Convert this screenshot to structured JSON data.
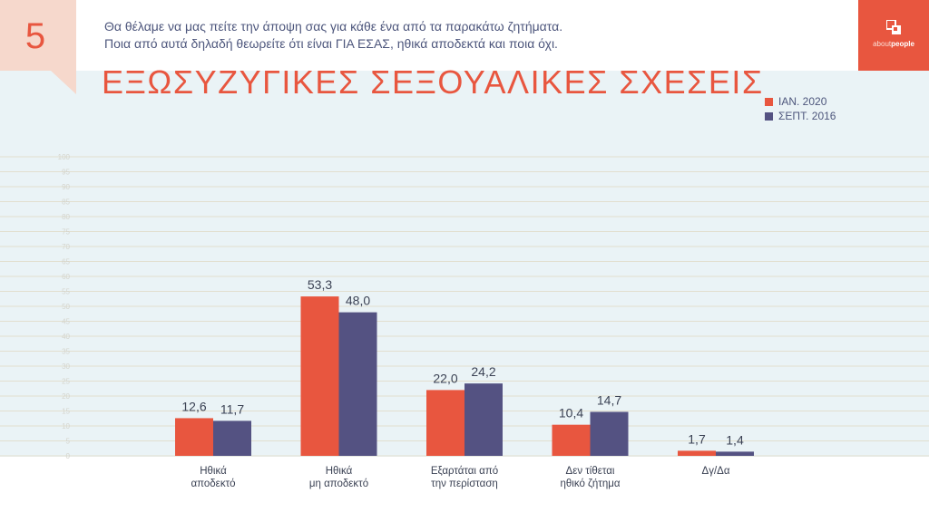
{
  "page": {
    "number": "5"
  },
  "header": {
    "question_line1": "Θα θέλαμε να μας πείτε την άποψη σας για κάθε ένα από τα παρακάτω ζητήματα.",
    "question_line2": "Ποια από αυτά δηλαδή θεωρείτε ότι είναι ΓΙΑ ΕΣΑΣ, ηθικά αποδεκτά και ποια όχι."
  },
  "logo": {
    "text_part1": "about",
    "text_part2": "people",
    "icon": "about-people-logo-icon"
  },
  "colors": {
    "accent": "#e8563f",
    "series1": "#e8563f",
    "series2": "#545282",
    "text": "#4d567c",
    "background": "#eaf3f6"
  },
  "chart_data": {
    "type": "bar",
    "title": "ΕΞΩΣΥΖΥΓΙΚΕΣ ΣΕΞΟΥΑΛΙΚΕΣ ΣΧΕΣΕΙΣ",
    "categories": [
      "Ηθικά\nαποδεκτό",
      "Ηθικά\nμη αποδεκτό",
      "Εξαρτάται από\nτην περίσταση",
      "Δεν τίθεται\nηθικό ζήτημα",
      "Δγ/Δα"
    ],
    "series": [
      {
        "name": "ΙΑΝ. 2020",
        "values": [
          12.6,
          53.3,
          22.0,
          10.4,
          1.7
        ],
        "labels": [
          "12,6",
          "53,3",
          "22,0",
          "10,4",
          "1,7"
        ],
        "color": "#e8563f"
      },
      {
        "name": "ΣΕΠΤ. 2016",
        "values": [
          11.7,
          48.0,
          24.2,
          14.7,
          1.4
        ],
        "labels": [
          "11,7",
          "48,0",
          "24,2",
          "14,7",
          "1,4"
        ],
        "color": "#545282"
      }
    ],
    "yticks": [
      "0",
      "5",
      "10",
      "15",
      "20",
      "25",
      "30",
      "35",
      "40",
      "45",
      "50",
      "55",
      "60",
      "65",
      "70",
      "75",
      "80",
      "85",
      "90",
      "95",
      "100"
    ],
    "ylim": [
      0,
      100
    ],
    "grid": true,
    "legend_position": "top-right"
  }
}
